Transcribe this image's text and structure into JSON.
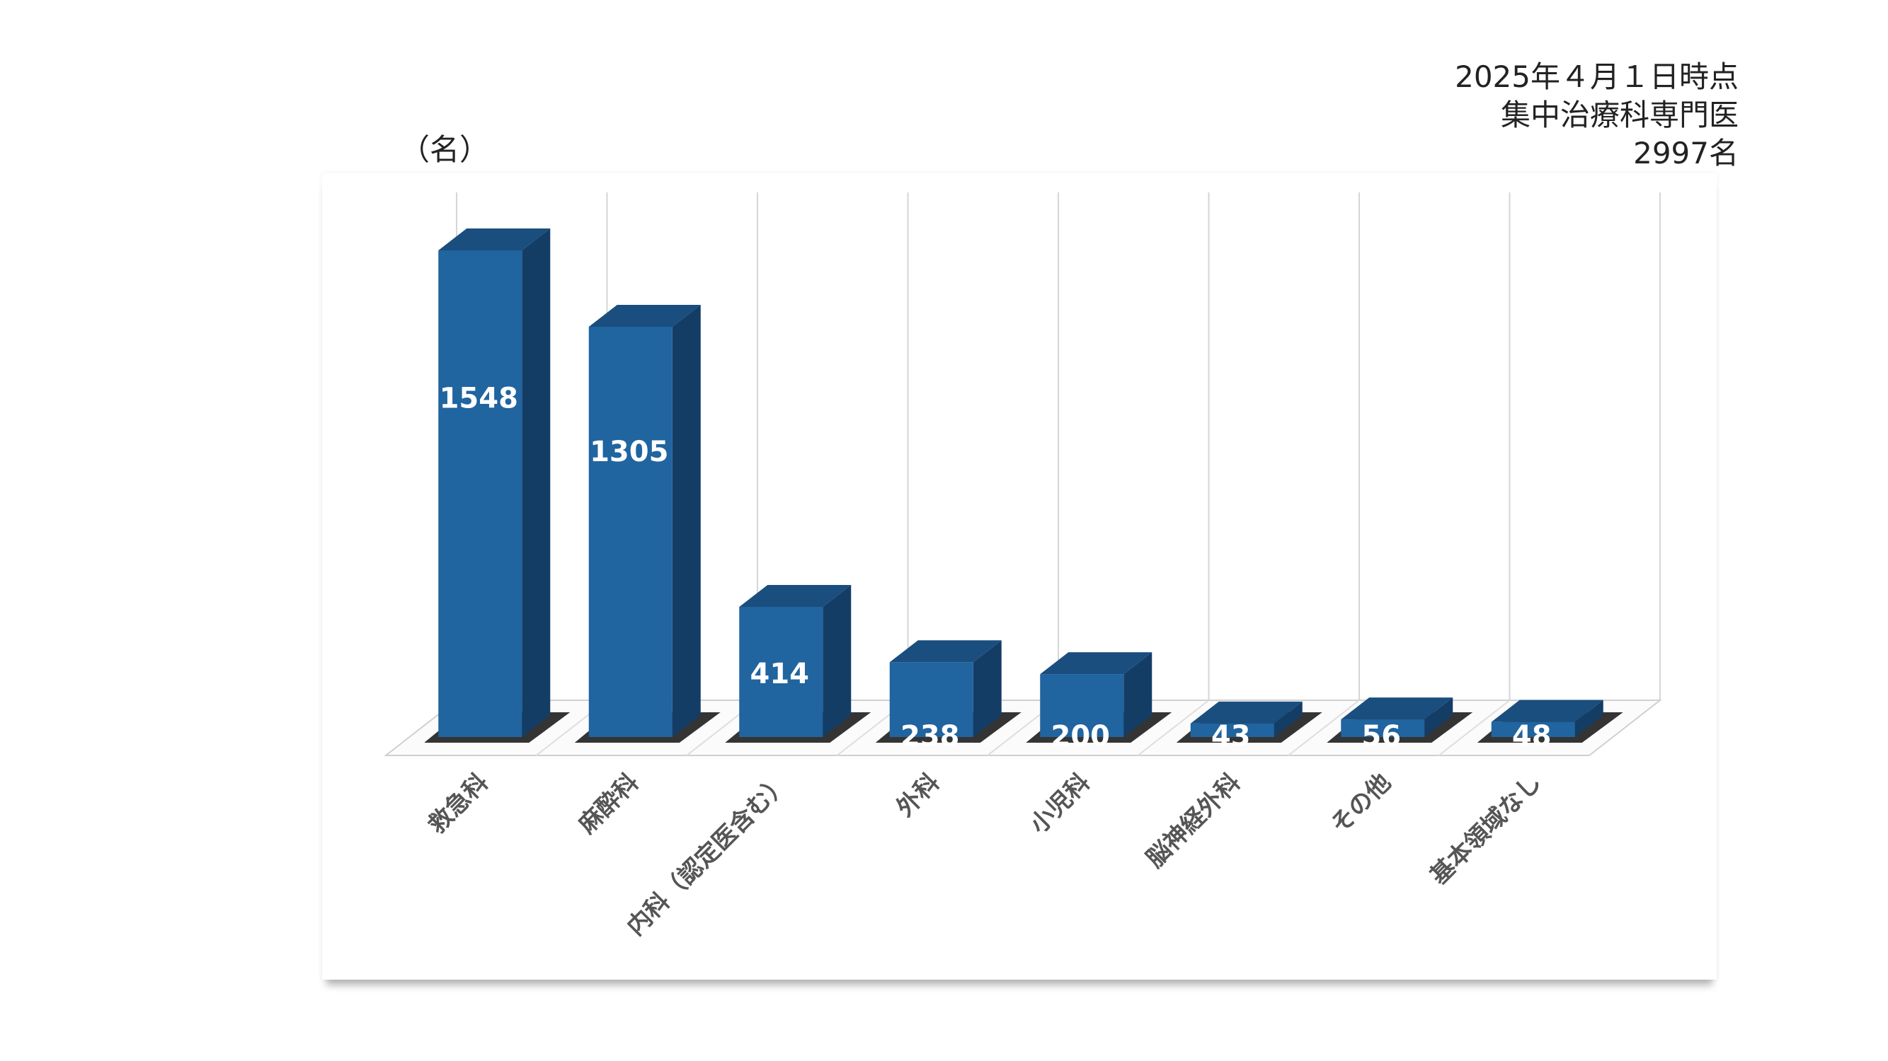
{
  "notes": {
    "date": "2025年４月１日時点",
    "department": "集中治療科専門医",
    "total": "2997名"
  },
  "chart_data": {
    "type": "bar",
    "title": "",
    "xlabel": "",
    "ylabel": "（名）",
    "categories": [
      "救急科",
      "麻酔科",
      "内科（認定医含む）",
      "外科",
      "小児科",
      "脳神経外科",
      "その他",
      "基本領域なし"
    ],
    "values": [
      1548,
      1305,
      414,
      238,
      200,
      43,
      56,
      48
    ],
    "ylim": [
      0,
      1600
    ],
    "grid": "vertical",
    "bar_style": "3d",
    "colors": {
      "bar_front": "#2064a0",
      "bar_top": "#1a4e7e",
      "bar_side": "#143d66",
      "label": "#ffffff",
      "category_label": "#555555"
    }
  }
}
